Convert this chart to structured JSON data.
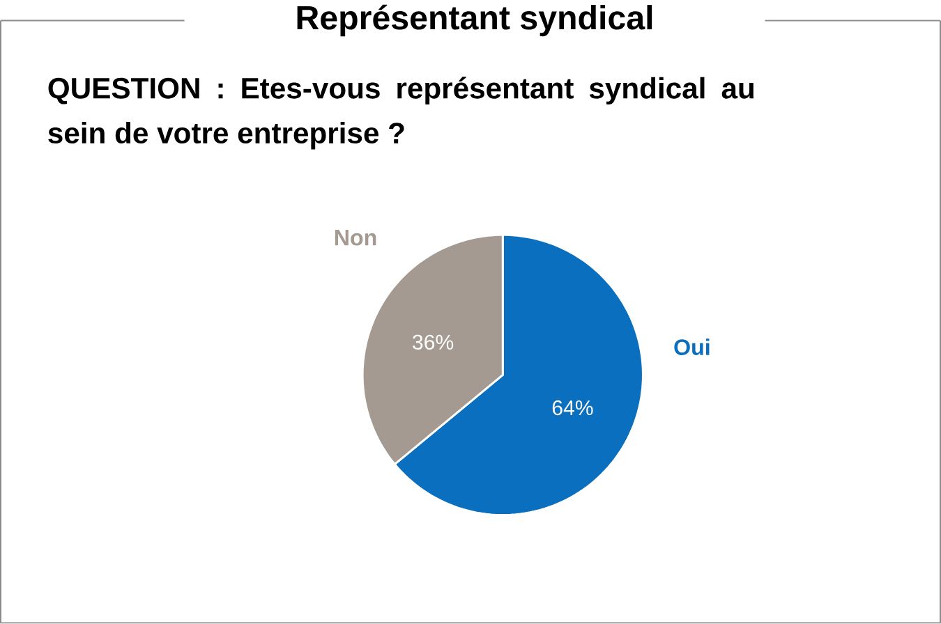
{
  "chart_data": {
    "type": "pie",
    "title": "Représentant syndical",
    "subtitle": "QUESTION : Etes-vous représentant syndical au sein de votre entreprise ?",
    "categories": [
      "Oui",
      "Non"
    ],
    "values": [
      64,
      36
    ],
    "colors": [
      "#0a6fbe",
      "#a59a91"
    ],
    "value_labels": [
      "64%",
      "36%"
    ]
  }
}
